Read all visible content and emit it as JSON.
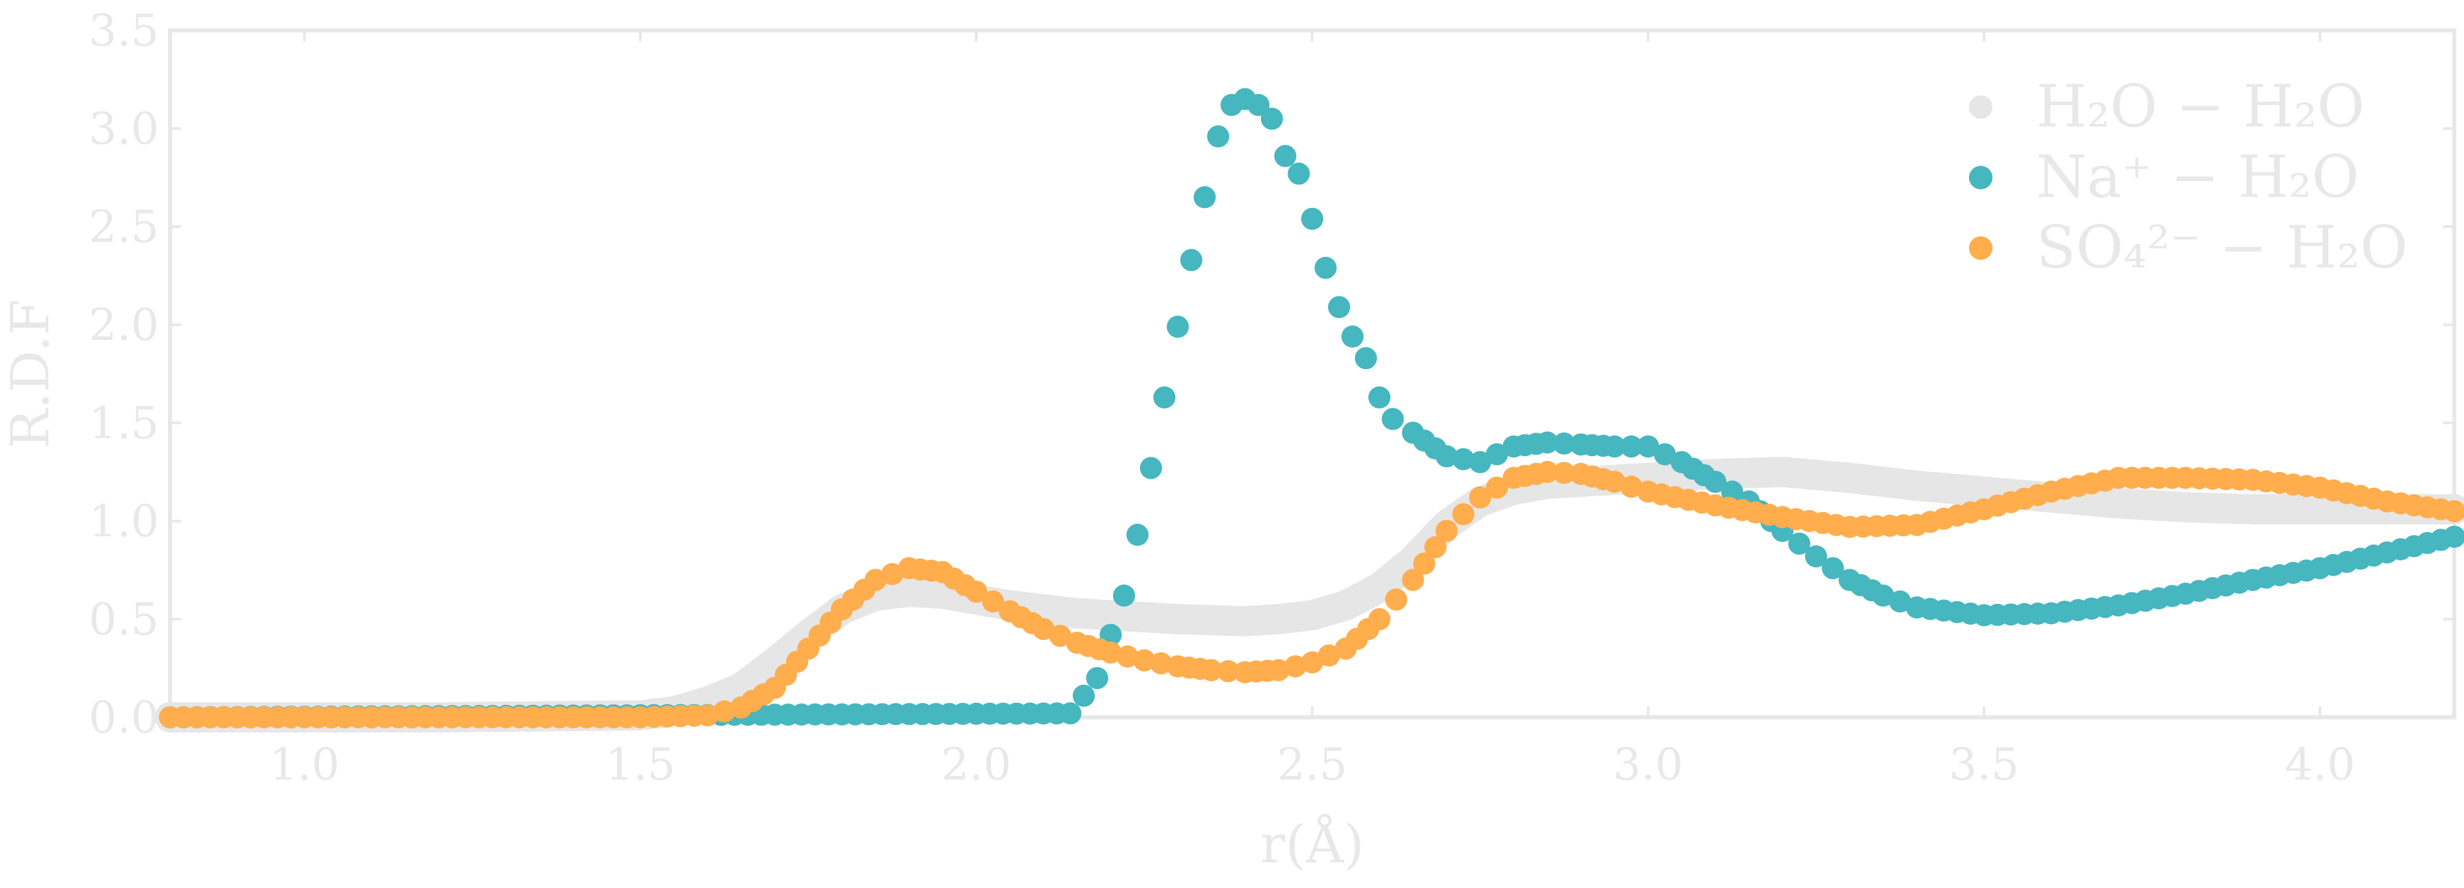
{
  "chart_data": {
    "type": "scatter",
    "xlabel": "r(Å)",
    "ylabel": "R.D.F",
    "xlim": [
      0.8,
      4.2
    ],
    "ylim": [
      0.0,
      3.5
    ],
    "xticks": [
      "1.0",
      "1.5",
      "2.0",
      "2.5",
      "3.0",
      "3.5",
      "4.0"
    ],
    "yticks": [
      "0.0",
      "0.5",
      "1.0",
      "1.5",
      "2.0",
      "2.5",
      "3.0",
      "3.5"
    ],
    "legend_position": "top-right",
    "grid": false,
    "series": [
      {
        "name": "H₂O − H₂O",
        "color": "#e6e6e6",
        "x": [
          0.8,
          1.2,
          1.5,
          1.55,
          1.6,
          1.65,
          1.7,
          1.75,
          1.8,
          1.85,
          1.9,
          1.95,
          2.0,
          2.05,
          2.1,
          2.15,
          2.2,
          2.3,
          2.4,
          2.45,
          2.5,
          2.55,
          2.6,
          2.65,
          2.7,
          2.75,
          2.8,
          2.85,
          2.9,
          2.95,
          3.0,
          3.1,
          3.2,
          3.3,
          3.4,
          3.5,
          3.6,
          3.7,
          3.8,
          3.9,
          4.0,
          4.1,
          4.2
        ],
        "y": [
          0.0,
          0.0,
          0.01,
          0.03,
          0.08,
          0.15,
          0.28,
          0.42,
          0.55,
          0.62,
          0.64,
          0.63,
          0.6,
          0.57,
          0.55,
          0.53,
          0.52,
          0.5,
          0.49,
          0.5,
          0.52,
          0.57,
          0.66,
          0.8,
          0.98,
          1.1,
          1.16,
          1.19,
          1.2,
          1.21,
          1.22,
          1.24,
          1.25,
          1.22,
          1.18,
          1.15,
          1.12,
          1.09,
          1.07,
          1.06,
          1.06,
          1.06,
          1.06
        ]
      },
      {
        "name": "Na⁺ − H₂O",
        "color": "#46b6bf",
        "x": [
          0.8,
          2.14,
          2.18,
          2.2,
          2.22,
          2.24,
          2.26,
          2.28,
          2.3,
          2.32,
          2.34,
          2.36,
          2.38,
          2.4,
          2.42,
          2.44,
          2.46,
          2.48,
          2.5,
          2.52,
          2.54,
          2.56,
          2.58,
          2.6,
          2.62,
          2.65,
          2.7,
          2.75,
          2.8,
          2.85,
          2.9,
          2.95,
          3.0,
          3.05,
          3.1,
          3.15,
          3.2,
          3.25,
          3.3,
          3.35,
          3.4,
          3.5,
          3.6,
          3.7,
          3.8,
          3.9,
          4.0,
          4.1,
          4.2
        ],
        "y": [
          0.0,
          0.02,
          0.2,
          0.42,
          0.62,
          0.93,
          1.27,
          1.63,
          1.99,
          2.33,
          2.65,
          2.96,
          3.12,
          3.15,
          3.12,
          3.05,
          2.86,
          2.77,
          2.54,
          2.29,
          2.09,
          1.94,
          1.83,
          1.63,
          1.52,
          1.45,
          1.33,
          1.3,
          1.38,
          1.4,
          1.39,
          1.38,
          1.38,
          1.3,
          1.2,
          1.1,
          0.95,
          0.82,
          0.7,
          0.62,
          0.56,
          0.52,
          0.53,
          0.57,
          0.63,
          0.7,
          0.76,
          0.84,
          0.92
        ]
      },
      {
        "name": "SO₄²⁻ − H₂O",
        "color": "#ffad4d",
        "x": [
          0.8,
          1.2,
          1.5,
          1.6,
          1.65,
          1.7,
          1.75,
          1.8,
          1.85,
          1.9,
          1.95,
          2.0,
          2.05,
          2.1,
          2.15,
          2.2,
          2.25,
          2.3,
          2.35,
          2.4,
          2.45,
          2.5,
          2.55,
          2.6,
          2.65,
          2.7,
          2.75,
          2.8,
          2.85,
          2.9,
          2.95,
          3.0,
          3.1,
          3.2,
          3.3,
          3.4,
          3.5,
          3.6,
          3.7,
          3.8,
          3.9,
          4.0,
          4.1,
          4.2
        ],
        "y": [
          0.0,
          0.0,
          0.0,
          0.01,
          0.05,
          0.15,
          0.35,
          0.55,
          0.7,
          0.76,
          0.74,
          0.64,
          0.54,
          0.45,
          0.38,
          0.33,
          0.29,
          0.26,
          0.24,
          0.23,
          0.24,
          0.28,
          0.35,
          0.5,
          0.7,
          0.95,
          1.12,
          1.22,
          1.25,
          1.24,
          1.2,
          1.15,
          1.08,
          1.02,
          0.97,
          0.98,
          1.06,
          1.15,
          1.22,
          1.22,
          1.21,
          1.17,
          1.1,
          1.05
        ]
      }
    ]
  }
}
